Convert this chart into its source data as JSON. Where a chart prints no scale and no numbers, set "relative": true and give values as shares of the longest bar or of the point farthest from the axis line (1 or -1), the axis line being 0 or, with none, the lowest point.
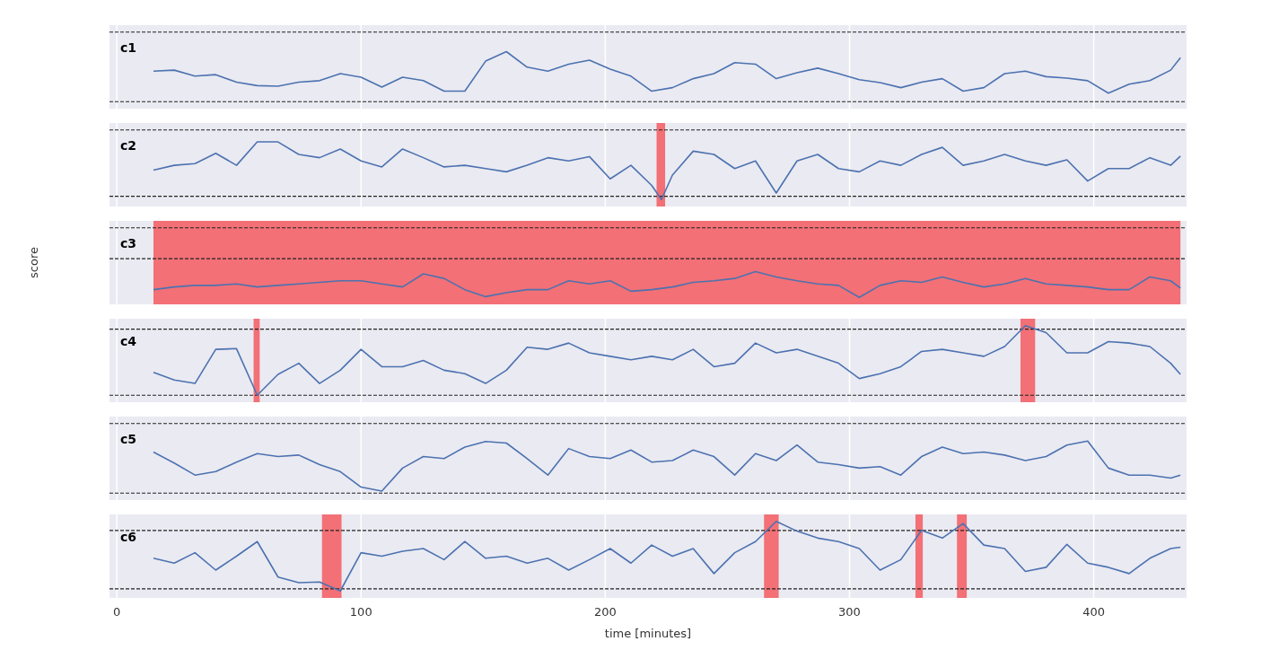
{
  "chart_data": [
    {
      "type": "line",
      "title": "c1",
      "relative": true,
      "xlim": [
        -3,
        438
      ],
      "xticks": [
        0,
        100,
        200,
        300,
        400
      ],
      "tick_labels": false,
      "grid": "x",
      "line_style": "solid",
      "x": [
        15,
        23.5,
        32,
        40.5,
        49,
        57.5,
        66,
        74.5,
        83,
        91.5,
        100,
        108.5,
        117,
        125.5,
        134,
        142.5,
        151,
        159.5,
        168,
        176.5,
        185,
        193.5,
        202,
        210.5,
        219,
        227.5,
        236,
        244.5,
        253,
        261.5,
        270,
        278.5,
        287,
        295.5,
        304,
        312.5,
        321,
        329.5,
        338,
        346.5,
        355,
        363.5,
        372,
        380.5,
        389,
        397.5,
        406,
        414.5,
        423,
        431.5,
        435.5
      ],
      "series": [
        {
          "color": "#4c72b0",
          "values": [
            0.61,
            0.63,
            0.51,
            0.54,
            0.39,
            0.32,
            0.31,
            0.39,
            0.42,
            0.56,
            0.49,
            0.29,
            0.49,
            0.42,
            0.21,
            0.21,
            0.81,
            1,
            0.69,
            0.61,
            0.75,
            0.83,
            0.65,
            0.51,
            0.21,
            0.28,
            0.46,
            0.56,
            0.78,
            0.75,
            0.46,
            0.58,
            0.67,
            0.56,
            0.44,
            0.38,
            0.28,
            0.39,
            0.46,
            0.21,
            0.28,
            0.56,
            0.61,
            0.5,
            0.47,
            0.42,
            0.17,
            0.35,
            0.42,
            0.63,
            0.88
          ]
        }
      ],
      "ref_lines": [
        {
          "axis": "y",
          "value": 1.39,
          "color": "#222222",
          "line_style": "dashed"
        },
        {
          "axis": "y",
          "value": 0,
          "color": "#222222",
          "line_style": "dashed"
        }
      ]
    },
    {
      "type": "line",
      "title": "c2",
      "relative": true,
      "xlim": [
        -3,
        438
      ],
      "xticks": [
        0,
        100,
        200,
        300,
        400
      ],
      "tick_labels": false,
      "grid": "x",
      "line_style": "solid",
      "x": [
        15,
        23.5,
        32,
        40.5,
        49,
        57.5,
        66,
        74.5,
        83,
        91.5,
        100,
        108.5,
        117,
        125.5,
        134,
        142.5,
        151,
        159.5,
        168,
        176.5,
        185,
        193.5,
        202,
        210.5,
        219,
        223,
        227.5,
        236,
        244.5,
        253,
        261.5,
        270,
        278.5,
        287,
        295.5,
        304,
        312.5,
        321,
        329.5,
        338,
        346.5,
        355,
        363.5,
        372,
        380.5,
        389,
        397.5,
        406,
        414.5,
        423,
        431.5,
        435.5
      ],
      "series": [
        {
          "color": "#4c72b0",
          "values": [
            0.48,
            0.57,
            0.6,
            0.79,
            0.57,
            1,
            1,
            0.77,
            0.71,
            0.87,
            0.65,
            0.54,
            0.87,
            0.71,
            0.54,
            0.57,
            0.51,
            0.45,
            0.57,
            0.71,
            0.65,
            0.73,
            0.32,
            0.57,
            0.2,
            -0.06,
            0.39,
            0.83,
            0.77,
            0.51,
            0.65,
            0.06,
            0.65,
            0.77,
            0.51,
            0.45,
            0.65,
            0.57,
            0.77,
            0.9,
            0.57,
            0.65,
            0.77,
            0.65,
            0.57,
            0.67,
            0.28,
            0.51,
            0.51,
            0.71,
            0.57,
            0.74
          ]
        }
      ],
      "ref_lines": [
        {
          "axis": "y",
          "value": 1.22,
          "color": "#222222",
          "line_style": "dashed"
        },
        {
          "axis": "y",
          "value": 0,
          "color": "#222222",
          "line_style": "dashed"
        }
      ],
      "bands": [
        {
          "axis": "x",
          "from": 221,
          "to": 224.5,
          "color": "#f27076"
        }
      ]
    },
    {
      "type": "line",
      "title": "c3",
      "ylabel": "score",
      "relative": true,
      "xlim": [
        -3,
        438
      ],
      "xticks": [
        0,
        100,
        200,
        300,
        400
      ],
      "tick_labels": false,
      "grid": "x",
      "line_style": "solid",
      "x": [
        15,
        23.5,
        32,
        40.5,
        49,
        57.5,
        66,
        74.5,
        83,
        91.5,
        100,
        108.5,
        117,
        125.5,
        134,
        142.5,
        151,
        159.5,
        168,
        176.5,
        185,
        193.5,
        202,
        210.5,
        219,
        227.5,
        236,
        244.5,
        253,
        261.5,
        270,
        278.5,
        287,
        295.5,
        304,
        312.5,
        321,
        329.5,
        338,
        346.5,
        355,
        363.5,
        372,
        380.5,
        389,
        397.5,
        406,
        414.5,
        423,
        431.5,
        435.5
      ],
      "series": [
        {
          "color": "#4c72b0",
          "values": [
            -0.8,
            -0.73,
            -0.69,
            -0.69,
            -0.65,
            -0.73,
            -0.69,
            -0.65,
            -0.61,
            -0.57,
            -0.57,
            -0.65,
            -0.73,
            -0.39,
            -0.51,
            -0.8,
            -0.98,
            -0.88,
            -0.8,
            -0.8,
            -0.57,
            -0.65,
            -0.57,
            -0.84,
            -0.8,
            -0.73,
            -0.61,
            -0.57,
            -0.51,
            -0.33,
            -0.47,
            -0.57,
            -0.65,
            -0.69,
            -1,
            -0.69,
            -0.57,
            -0.61,
            -0.47,
            -0.61,
            -0.73,
            -0.65,
            -0.51,
            -0.65,
            -0.69,
            -0.73,
            -0.8,
            -0.8,
            -0.47,
            -0.57,
            -0.76
          ]
        }
      ],
      "ref_lines": [
        {
          "axis": "y",
          "value": 0.8,
          "color": "#222222",
          "line_style": "dashed"
        },
        {
          "axis": "y",
          "value": 0,
          "color": "#222222",
          "line_style": "dashed"
        }
      ],
      "bands": [
        {
          "axis": "x",
          "from": 15,
          "to": 435.5,
          "color": "#f27076"
        }
      ]
    },
    {
      "type": "line",
      "title": "c4",
      "relative": true,
      "xlim": [
        -3,
        438
      ],
      "xticks": [
        0,
        100,
        200,
        300,
        400
      ],
      "tick_labels": false,
      "grid": "x",
      "line_style": "solid",
      "x": [
        15,
        23.5,
        32,
        40.5,
        49,
        57.5,
        66,
        74.5,
        83,
        91.5,
        100,
        108.5,
        117,
        125.5,
        134,
        142.5,
        151,
        159.5,
        168,
        176.5,
        185,
        193.5,
        202,
        210.5,
        219,
        227.5,
        236,
        244.5,
        253,
        261.5,
        270,
        278.5,
        287,
        295.5,
        304,
        312.5,
        321,
        329.5,
        338,
        346.5,
        355,
        363.5,
        372,
        380.5,
        389,
        397.5,
        406,
        414.5,
        423,
        431.5,
        435.5
      ],
      "series": [
        {
          "color": "#4c72b0",
          "values": [
            0.33,
            0.22,
            0.17,
            0.66,
            0.67,
            0,
            0.3,
            0.46,
            0.17,
            0.36,
            0.66,
            0.41,
            0.41,
            0.5,
            0.36,
            0.31,
            0.17,
            0.36,
            0.69,
            0.66,
            0.75,
            0.61,
            0.56,
            0.51,
            0.56,
            0.51,
            0.66,
            0.41,
            0.46,
            0.75,
            0.61,
            0.66,
            0.56,
            0.46,
            0.24,
            0.31,
            0.41,
            0.63,
            0.66,
            0.61,
            0.56,
            0.7,
            1,
            0.9,
            0.61,
            0.61,
            0.77,
            0.75,
            0.7,
            0.46,
            0.3
          ]
        }
      ],
      "ref_lines": [
        {
          "axis": "y",
          "value": 0.95,
          "color": "#222222",
          "line_style": "dashed"
        },
        {
          "axis": "y",
          "value": 0,
          "color": "#222222",
          "line_style": "dashed"
        }
      ],
      "bands": [
        {
          "axis": "x",
          "from": 56,
          "to": 58.5,
          "color": "#f27076"
        },
        {
          "axis": "x",
          "from": 370,
          "to": 376,
          "color": "#f27076"
        }
      ]
    },
    {
      "type": "line",
      "title": "c5",
      "relative": true,
      "xlim": [
        -3,
        438
      ],
      "xticks": [
        0,
        100,
        200,
        300,
        400
      ],
      "tick_labels": false,
      "grid": "x",
      "line_style": "solid",
      "x": [
        15,
        23.5,
        32,
        40.5,
        49,
        57.5,
        66,
        74.5,
        83,
        91.5,
        100,
        108.5,
        117,
        125.5,
        134,
        142.5,
        151,
        159.5,
        168,
        176.5,
        185,
        193.5,
        202,
        210.5,
        219,
        227.5,
        236,
        244.5,
        253,
        261.5,
        270,
        278.5,
        287,
        295.5,
        304,
        312.5,
        321,
        329.5,
        338,
        346.5,
        355,
        363.5,
        372,
        380.5,
        389,
        397.5,
        406,
        414.5,
        423,
        431.5,
        435.5
      ],
      "series": [
        {
          "color": "#4c72b0",
          "values": [
            0.78,
            0.56,
            0.32,
            0.39,
            0.58,
            0.75,
            0.69,
            0.72,
            0.53,
            0.39,
            0.08,
            0,
            0.46,
            0.69,
            0.65,
            0.88,
            0.99,
            0.96,
            0.65,
            0.32,
            0.85,
            0.69,
            0.65,
            0.82,
            0.58,
            0.61,
            0.82,
            0.69,
            0.32,
            0.75,
            0.61,
            0.92,
            0.58,
            0.53,
            0.46,
            0.49,
            0.32,
            0.69,
            0.88,
            0.75,
            0.78,
            0.72,
            0.61,
            0.69,
            0.92,
            1,
            0.46,
            0.32,
            0.32,
            0.26,
            0.32
          ]
        }
      ],
      "ref_lines": [
        {
          "axis": "y",
          "value": 1.35,
          "color": "#222222",
          "line_style": "dashed"
        },
        {
          "axis": "y",
          "value": -0.04,
          "color": "#222222",
          "line_style": "dashed"
        }
      ]
    },
    {
      "type": "line",
      "title": "c6",
      "xlabel": "time [minutes]",
      "relative": true,
      "xlim": [
        -3,
        438
      ],
      "xticks": [
        0,
        100,
        200,
        300,
        400
      ],
      "tick_labels": "x",
      "grid": "x",
      "line_style": "solid",
      "x": [
        15,
        23.5,
        32,
        40.5,
        49,
        57.5,
        66,
        74.5,
        83,
        91.5,
        100,
        108.5,
        117,
        125.5,
        134,
        142.5,
        151,
        159.5,
        168,
        176.5,
        185,
        193.5,
        202,
        210.5,
        219,
        227.5,
        236,
        244.5,
        253,
        261.5,
        270,
        278.5,
        287,
        295.5,
        304,
        312.5,
        321,
        329.5,
        338,
        346.5,
        355,
        363.5,
        372,
        380.5,
        389,
        397.5,
        406,
        414.5,
        423,
        431.5,
        435.5
      ],
      "series": [
        {
          "color": "#4c72b0",
          "values": [
            0.47,
            0.4,
            0.55,
            0.3,
            0.5,
            0.71,
            0.2,
            0.12,
            0.13,
            0,
            0.55,
            0.5,
            0.57,
            0.61,
            0.45,
            0.71,
            0.47,
            0.5,
            0.4,
            0.47,
            0.3,
            0.45,
            0.61,
            0.4,
            0.66,
            0.5,
            0.61,
            0.25,
            0.55,
            0.71,
            1,
            0.86,
            0.76,
            0.71,
            0.61,
            0.3,
            0.45,
            0.87,
            0.76,
            0.97,
            0.66,
            0.61,
            0.28,
            0.34,
            0.67,
            0.4,
            0.34,
            0.25,
            0.47,
            0.61,
            0.63
          ]
        }
      ],
      "ref_lines": [
        {
          "axis": "y",
          "value": 0.87,
          "color": "#222222",
          "line_style": "dashed"
        },
        {
          "axis": "y",
          "value": 0.03,
          "color": "#222222",
          "line_style": "dashed"
        }
      ],
      "bands": [
        {
          "axis": "x",
          "from": 84,
          "to": 92,
          "color": "#f27076"
        },
        {
          "axis": "x",
          "from": 265,
          "to": 271,
          "color": "#f27076"
        },
        {
          "axis": "x",
          "from": 327,
          "to": 330,
          "color": "#f27076"
        },
        {
          "axis": "x",
          "from": 344,
          "to": 348,
          "color": "#f27076"
        }
      ]
    }
  ]
}
